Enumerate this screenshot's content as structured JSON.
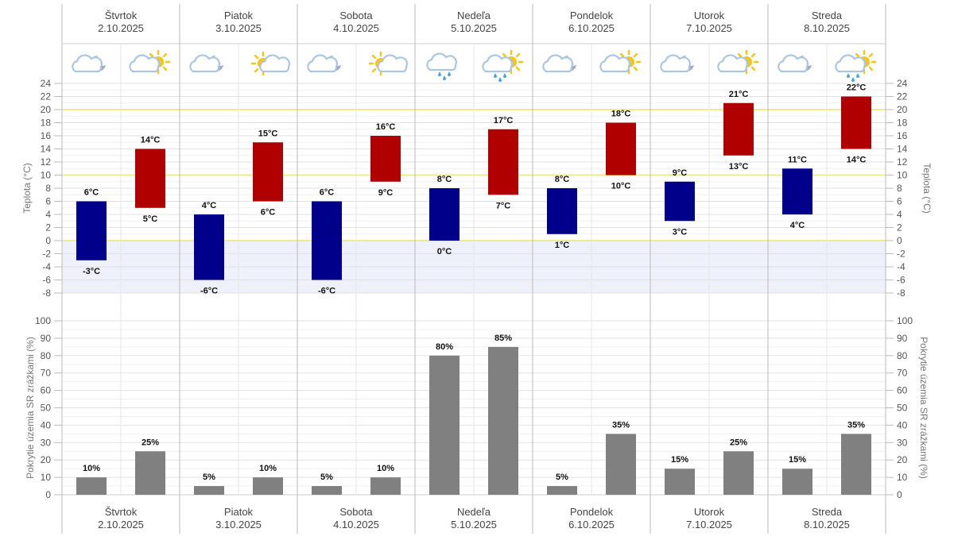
{
  "days": [
    {
      "name": "Štvrtok",
      "date": "2.10.2025",
      "icons": [
        "cloud-moon-icon",
        "cloud-sun-icon"
      ]
    },
    {
      "name": "Piatok",
      "date": "3.10.2025",
      "icons": [
        "cloud-moon-icon",
        "sun-cloud-icon"
      ]
    },
    {
      "name": "Sobota",
      "date": "4.10.2025",
      "icons": [
        "cloud-moon-icon",
        "sun-cloud-icon"
      ]
    },
    {
      "name": "Nedeľa",
      "date": "5.10.2025",
      "icons": [
        "cloud-rain-icon",
        "cloud-sun-rain-icon"
      ]
    },
    {
      "name": "Pondelok",
      "date": "6.10.2025",
      "icons": [
        "cloud-moon-icon",
        "cloud-sun-icon"
      ]
    },
    {
      "name": "Utorok",
      "date": "7.10.2025",
      "icons": [
        "cloud-moon-icon",
        "cloud-sun-icon"
      ]
    },
    {
      "name": "Streda",
      "date": "8.10.2025",
      "icons": [
        "cloud-moon-icon",
        "cloud-sun-rain-icon"
      ]
    }
  ],
  "chart_data": [
    {
      "type": "bar",
      "subtype": "floating-range",
      "ylabel": "Teplota (°C)",
      "ylim": [
        -8,
        24
      ],
      "yticks": [
        24,
        22,
        20,
        18,
        16,
        14,
        12,
        10,
        8,
        6,
        4,
        2,
        0,
        -2,
        -4,
        -6,
        -8
      ],
      "highlight_lines": [
        0,
        10,
        20
      ],
      "grid": true,
      "unit": "°C",
      "categories": [
        "Štvrtok 2.10.2025",
        "Piatok 3.10.2025",
        "Sobota 4.10.2025",
        "Nedeľa 5.10.2025",
        "Pondelok 6.10.2025",
        "Utorok 7.10.2025",
        "Streda 8.10.2025"
      ],
      "series": [
        {
          "period": "night",
          "color": "#00008b",
          "min": [
            -3,
            -6,
            -6,
            0,
            1,
            3,
            4
          ],
          "max": [
            6,
            4,
            6,
            8,
            8,
            9,
            11
          ]
        },
        {
          "period": "day",
          "color": "#b00000",
          "min": [
            5,
            6,
            9,
            7,
            10,
            13,
            14
          ],
          "max": [
            14,
            15,
            16,
            17,
            18,
            21,
            22
          ]
        }
      ]
    },
    {
      "type": "bar",
      "ylabel": "Pokrytie územia SR zrážkami (%)",
      "ylim": [
        0,
        100
      ],
      "yticks": [
        100,
        90,
        80,
        70,
        60,
        50,
        40,
        30,
        20,
        10,
        0
      ],
      "grid": true,
      "unit": "%",
      "color": "#808080",
      "categories": [
        "Štvrtok 2.10.2025",
        "Piatok 3.10.2025",
        "Sobota 4.10.2025",
        "Nedeľa 5.10.2025",
        "Pondelok 6.10.2025",
        "Utorok 7.10.2025",
        "Streda 8.10.2025"
      ],
      "series": [
        {
          "period": "night",
          "values": [
            10,
            5,
            5,
            80,
            5,
            15,
            15
          ]
        },
        {
          "period": "day",
          "values": [
            25,
            10,
            10,
            85,
            35,
            25,
            35
          ]
        }
      ]
    }
  ]
}
